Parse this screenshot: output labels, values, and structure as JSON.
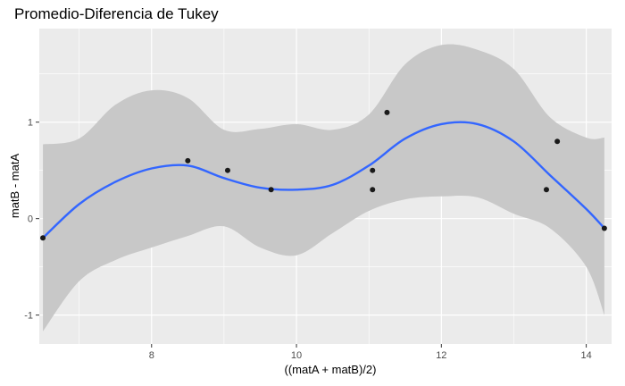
{
  "chart_data": {
    "type": "scatter",
    "title": "Promedio-Diferencia de Tukey",
    "xlabel": "((matA + matB)/2)",
    "ylabel": "matB - matA",
    "xlim": [
      6.45,
      14.35
    ],
    "ylim": [
      -1.3,
      1.97
    ],
    "x_ticks": [
      8,
      10,
      12,
      14
    ],
    "x_tick_labels": [
      "8",
      "10",
      "12",
      "14"
    ],
    "y_ticks": [
      -1,
      0,
      1
    ],
    "y_tick_labels": [
      "-1",
      "0",
      "1"
    ],
    "grid": true,
    "points": [
      {
        "x": 6.5,
        "y": -0.2
      },
      {
        "x": 8.5,
        "y": 0.6
      },
      {
        "x": 9.05,
        "y": 0.5
      },
      {
        "x": 9.65,
        "y": 0.3
      },
      {
        "x": 11.05,
        "y": 0.5
      },
      {
        "x": 11.05,
        "y": 0.3
      },
      {
        "x": 11.25,
        "y": 1.1
      },
      {
        "x": 13.45,
        "y": 0.3
      },
      {
        "x": 13.6,
        "y": 0.8
      },
      {
        "x": 14.25,
        "y": -0.1
      }
    ],
    "smooth_fit": {
      "x": [
        6.5,
        7.0,
        7.5,
        8.0,
        8.5,
        9.0,
        9.5,
        10.0,
        10.5,
        11.0,
        11.5,
        12.0,
        12.5,
        13.0,
        13.5,
        14.0,
        14.25
      ],
      "y": [
        -0.2,
        0.15,
        0.38,
        0.52,
        0.55,
        0.42,
        0.32,
        0.3,
        0.35,
        0.55,
        0.83,
        0.98,
        0.98,
        0.8,
        0.45,
        0.1,
        -0.1
      ],
      "lower": [
        -1.17,
        -0.65,
        -0.43,
        -0.3,
        -0.18,
        -0.08,
        -0.3,
        -0.38,
        -0.15,
        0.08,
        0.2,
        0.23,
        0.22,
        0.05,
        -0.1,
        -0.5,
        -1.0
      ],
      "upper": [
        0.77,
        0.83,
        1.18,
        1.33,
        1.25,
        0.92,
        0.93,
        0.98,
        0.92,
        1.08,
        1.6,
        1.8,
        1.75,
        1.55,
        1.05,
        0.84,
        0.84
      ]
    },
    "colors": {
      "panel": "#ebebeb",
      "grid_major": "#ffffff",
      "ribbon": "#c8c8c8",
      "line": "#3366ff",
      "point": "#1a1a1a"
    }
  }
}
